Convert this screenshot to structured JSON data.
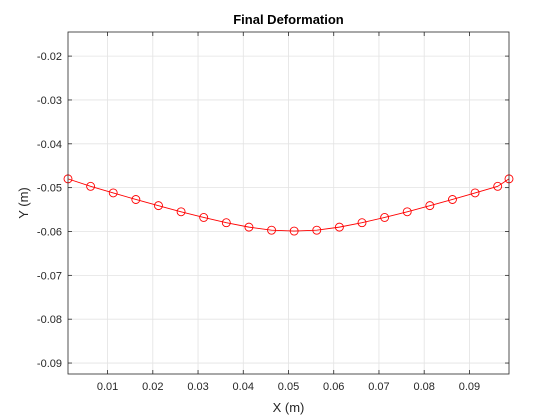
{
  "chart_data": {
    "type": "line",
    "title": "Final Deformation",
    "xlabel": "X (m)",
    "ylabel": "Y (m)",
    "xlim": [
      0.00125,
      0.09875
    ],
    "ylim": [
      -0.0925,
      -0.0145
    ],
    "grid": true,
    "legend": "none",
    "x_ticks": [
      0.01,
      0.02,
      0.03,
      0.04,
      0.05,
      0.06,
      0.07,
      0.08,
      0.09
    ],
    "x_tick_labels": [
      "0.01",
      "0.02",
      "0.03",
      "0.04",
      "0.05",
      "0.06",
      "0.07",
      "0.08",
      "0.09"
    ],
    "y_ticks": [
      -0.02,
      -0.03,
      -0.04,
      -0.05,
      -0.06,
      -0.07,
      -0.08,
      -0.09
    ],
    "y_tick_labels": [
      "-0.02",
      "-0.03",
      "-0.04",
      "-0.05",
      "-0.06",
      "-0.07",
      "-0.08",
      "-0.09"
    ],
    "series": [
      {
        "color": "#ff0000",
        "marker": "circle",
        "x": [
          0.00125,
          0.00625,
          0.01125,
          0.01625,
          0.02125,
          0.02625,
          0.03125,
          0.03625,
          0.04125,
          0.04625,
          0.05125,
          0.05625,
          0.06125,
          0.06625,
          0.07125,
          0.07625,
          0.08125,
          0.08625,
          0.09125,
          0.09625,
          0.09875
        ],
        "y": [
          -0.048,
          -0.0497,
          -0.0512,
          -0.0527,
          -0.0541,
          -0.0555,
          -0.0568,
          -0.058,
          -0.059,
          -0.0597,
          -0.0599,
          -0.0597,
          -0.059,
          -0.058,
          -0.0568,
          -0.0555,
          -0.0541,
          -0.0527,
          -0.0512,
          -0.0497,
          -0.048
        ]
      }
    ]
  }
}
